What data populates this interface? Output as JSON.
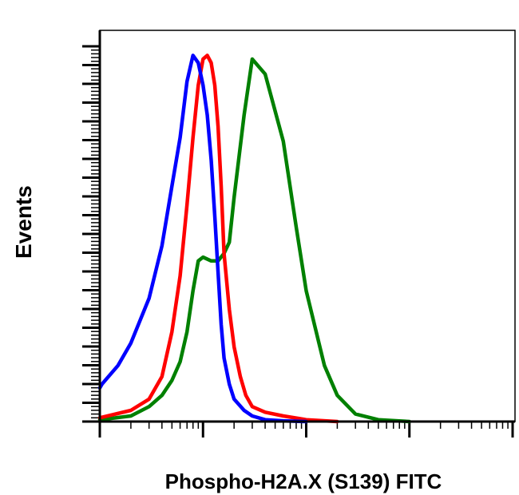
{
  "chart_data": {
    "type": "line",
    "xlabel": "Phospho-H2A.X (S139) FITC",
    "ylabel": "Events",
    "x_scale": "log",
    "xlim": [
      1,
      10000
    ],
    "ylim": [
      0,
      100
    ],
    "grid": false,
    "legend": "none",
    "series": [
      {
        "color": "#0000ff",
        "x": [
          1,
          1.05,
          1.5,
          2,
          3,
          4,
          5,
          6,
          7,
          8,
          9,
          10,
          11,
          12,
          13,
          14,
          15,
          16,
          18,
          20,
          25,
          30,
          40,
          60,
          100
        ],
        "values": [
          9,
          10,
          15,
          21,
          33,
          47,
          63,
          76,
          91,
          98,
          96,
          90,
          82,
          70,
          55,
          40,
          26,
          17,
          10,
          6,
          3,
          1.5,
          0.5,
          0.2,
          0
        ]
      },
      {
        "color": "#ff0000",
        "x": [
          1,
          2,
          3,
          4,
          5,
          6,
          7,
          8,
          9,
          10,
          11,
          12,
          13,
          14,
          15,
          16,
          18,
          20,
          23,
          26,
          30,
          40,
          60,
          100,
          200
        ],
        "values": [
          1,
          3,
          6,
          12,
          24,
          39,
          58,
          76,
          90,
          97,
          98,
          96,
          90,
          79,
          63,
          45,
          30,
          20,
          12,
          7,
          4,
          2.5,
          1.5,
          0.5,
          0
        ]
      },
      {
        "color": "#008000",
        "x": [
          1,
          2,
          3,
          4,
          5,
          6,
          7,
          8,
          9,
          10,
          12,
          14,
          16,
          18,
          20,
          25,
          30,
          40,
          60,
          80,
          100,
          150,
          200,
          300,
          500,
          1000
        ],
        "values": [
          0.5,
          1.5,
          4,
          7,
          11,
          16,
          24,
          35,
          43,
          44,
          43,
          43,
          45,
          48,
          60,
          82,
          97,
          93,
          75,
          52,
          35,
          15,
          7,
          2,
          0.5,
          0
        ]
      }
    ]
  }
}
